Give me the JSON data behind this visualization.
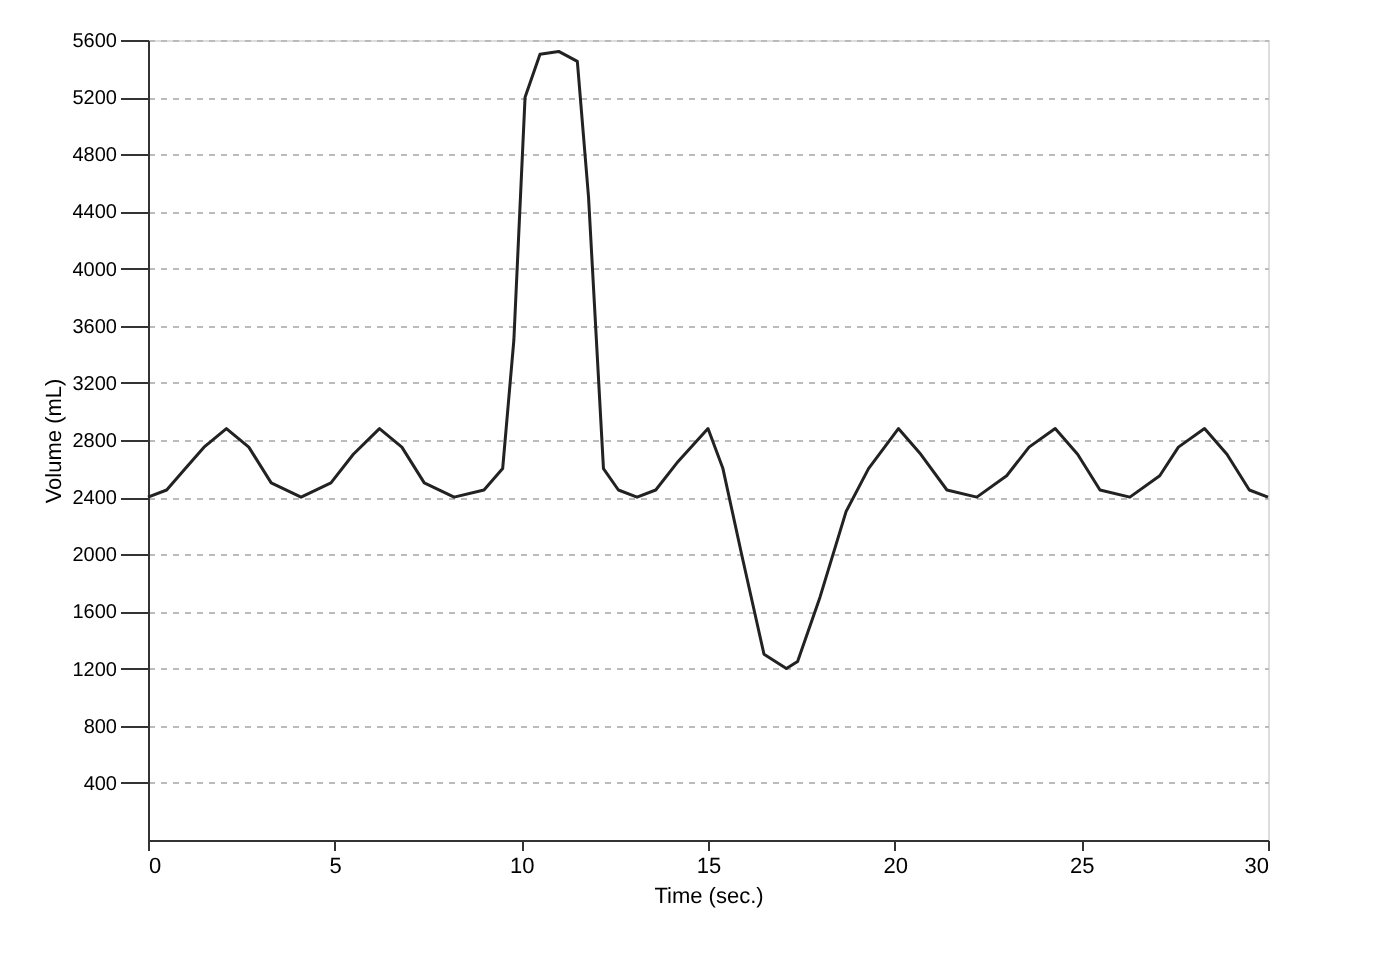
{
  "chart_data": {
    "type": "line",
    "xlabel": "Time (sec.)",
    "ylabel": "Volume (mL)",
    "x": [
      0,
      0.5,
      1,
      1.5,
      2.1,
      2.7,
      3.3,
      4.1,
      4.9,
      5.5,
      6.2,
      6.8,
      7.4,
      8.2,
      9.0,
      9.5,
      9.8,
      10.1,
      10.5,
      11.0,
      11.5,
      11.8,
      12.2,
      12.6,
      13.1,
      13.6,
      14.2,
      15.0,
      15.4,
      15.9,
      16.5,
      17.1,
      17.4,
      18.0,
      18.7,
      19.3,
      20.1,
      20.7,
      21.4,
      22.2,
      23.0,
      23.6,
      24.3,
      24.9,
      25.5,
      26.3,
      27.1,
      27.6,
      28.3,
      28.9,
      29.5,
      30
    ],
    "series": [
      {
        "color": "#222222",
        "values": [
          2400,
          2450,
          2600,
          2750,
          2880,
          2750,
          2500,
          2400,
          2500,
          2700,
          2880,
          2750,
          2500,
          2400,
          2450,
          2600,
          3500,
          5200,
          5500,
          5520,
          5450,
          4500,
          2600,
          2450,
          2400,
          2450,
          2650,
          2880,
          2600,
          2000,
          1300,
          1200,
          1250,
          1700,
          2300,
          2600,
          2880,
          2700,
          2450,
          2400,
          2550,
          2750,
          2880,
          2700,
          2450,
          2400,
          2550,
          2750,
          2880,
          2700,
          2450,
          2400
        ]
      }
    ],
    "xlim": [
      0,
      30
    ],
    "xticks": [
      0,
      5,
      10,
      15,
      20,
      25,
      30
    ],
    "ylim": [
      0,
      5600
    ],
    "yticks": [
      400,
      800,
      1200,
      1600,
      2000,
      2400,
      2800,
      3200,
      3600,
      4000,
      4400,
      4800,
      5200,
      5600
    ],
    "grid": "y",
    "legend": false,
    "marker": "none",
    "line_style": "solid"
  }
}
